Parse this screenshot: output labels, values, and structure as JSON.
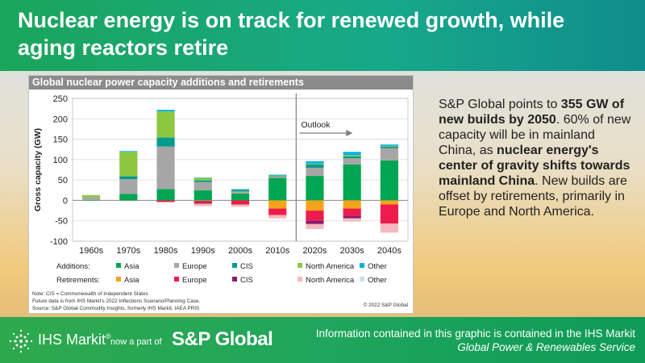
{
  "header": {
    "title": "Nuclear energy is on track for renewed growth, while aging reactors retire"
  },
  "panel": {
    "title": "Global nuclear power capacity additions and retirements",
    "notes": [
      "Note: CIS = Commonwealth of Independent States",
      "Future data is from IHS Markit's 2022 Inflections Scenario/Planning Case.",
      "Source: S&P Global Commodity Insights, formerly IHS Markit, IAEA PRIS"
    ],
    "copyright": "© 2022 S&P Global"
  },
  "sidebar": {
    "t1": "S&P Global points to ",
    "b1": "355 GW of new builds by 2050",
    "t2": ". 60% of new capacity will be in mainland China, as ",
    "b2": "nuclear energy's center of gravity shifts towards mainland China",
    "t3": ". New builds are offset by retirements, primarily in Europe and North America."
  },
  "footer": {
    "ihs_brand": "IHS Markit",
    "ihs_mark": "®",
    "now_part": "now a part of",
    "spg_brand": "S&P Global",
    "info_line": "Information contained in this graphic is contained in the IHS Markit",
    "service_name": "Global Power & Renewables Service"
  },
  "colors": {
    "asia": "#00a651",
    "europe": "#a6a6a6",
    "cis": "#009b8c",
    "north_america": "#8dc63f",
    "other": "#00b2e3",
    "ret_asia": "#f7a21b",
    "ret_europe": "#ec1c4c",
    "ret_cis": "#8b1a6b",
    "ret_north_america": "#f6b8be",
    "ret_other": "#c8e1f0"
  },
  "chart_data": {
    "type": "bar",
    "stacked": true,
    "categories": [
      "1960s",
      "1970s",
      "1980s",
      "1990s",
      "2000s",
      "2010s",
      "2020s",
      "2030s",
      "2040s"
    ],
    "ylabel": "Gross capacity (GW)",
    "ylim": [
      -100,
      250
    ],
    "yticks": [
      -100,
      -50,
      0,
      50,
      100,
      150,
      200,
      250
    ],
    "grid": true,
    "annotation": "Outlook",
    "legend_rows": [
      {
        "label": "Additions:",
        "keys": [
          "Asia",
          "Europe",
          "CIS",
          "North America",
          "Other"
        ]
      },
      {
        "label": "Retirements:",
        "keys": [
          "Asia",
          "Europe",
          "CIS",
          "North America",
          "Other"
        ]
      }
    ],
    "additions": [
      {
        "name": "Asia",
        "color": "#00a651",
        "values": [
          1,
          16,
          28,
          25,
          17,
          55,
          60,
          88,
          98
        ]
      },
      {
        "name": "Europe",
        "color": "#a6a6a6",
        "values": [
          6,
          36,
          104,
          20,
          5,
          4,
          20,
          15,
          30
        ]
      },
      {
        "name": "CIS",
        "color": "#009b8c",
        "values": [
          0,
          7,
          22,
          4,
          4,
          1,
          8,
          5,
          4
        ]
      },
      {
        "name": "North America",
        "color": "#8dc63f",
        "values": [
          6,
          60,
          64,
          6,
          1,
          1,
          2,
          3,
          2
        ]
      },
      {
        "name": "Other",
        "color": "#00b2e3",
        "values": [
          0,
          2,
          4,
          1,
          1,
          2,
          6,
          8,
          3
        ]
      }
    ],
    "retirements": [
      {
        "name": "Asia",
        "color": "#f7a21b",
        "values": [
          0,
          0,
          0,
          -1,
          0,
          -20,
          -25,
          -20,
          -10
        ]
      },
      {
        "name": "Europe",
        "color": "#ec1c4c",
        "values": [
          0,
          0,
          -4,
          -5,
          -10,
          -16,
          -25,
          -18,
          -47
        ]
      },
      {
        "name": "CIS",
        "color": "#8b1a6b",
        "values": [
          0,
          0,
          0,
          -2,
          0,
          0,
          -8,
          -6,
          0
        ]
      },
      {
        "name": "North America",
        "color": "#f6b8be",
        "values": [
          0,
          0,
          0,
          -6,
          -5,
          -8,
          -12,
          -8,
          -22
        ]
      },
      {
        "name": "Other",
        "color": "#c8e1f0",
        "values": [
          0,
          0,
          0,
          0,
          0,
          0,
          0,
          0,
          0
        ]
      }
    ]
  }
}
